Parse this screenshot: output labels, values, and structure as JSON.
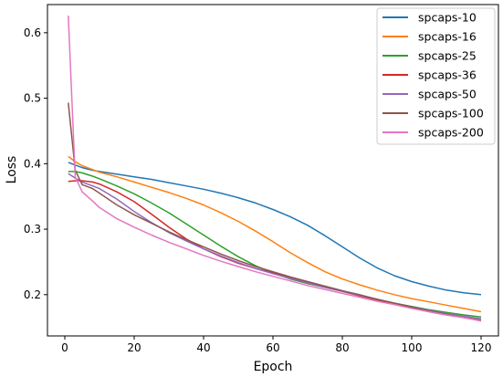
{
  "chart_data": {
    "type": "line",
    "title": "",
    "xlabel": "Epoch",
    "ylabel": "Loss",
    "xlim": [
      -5,
      125
    ],
    "ylim": [
      0.137,
      0.643
    ],
    "x_ticks": [
      0,
      20,
      40,
      60,
      80,
      100,
      120
    ],
    "y_ticks": [
      0.2,
      0.3,
      0.4,
      0.5,
      0.6
    ],
    "grid": false,
    "legend_position": "top-right",
    "x": [
      1,
      3,
      5,
      8,
      10,
      15,
      20,
      25,
      30,
      35,
      40,
      45,
      50,
      55,
      60,
      65,
      70,
      75,
      80,
      85,
      90,
      95,
      100,
      105,
      110,
      115,
      120
    ],
    "series": [
      {
        "name": "spcaps-10",
        "color": "#1f77b4",
        "values": [
          0.402,
          0.398,
          0.394,
          0.39,
          0.388,
          0.384,
          0.38,
          0.376,
          0.371,
          0.366,
          0.361,
          0.355,
          0.348,
          0.34,
          0.33,
          0.319,
          0.306,
          0.29,
          0.273,
          0.256,
          0.241,
          0.229,
          0.22,
          0.213,
          0.207,
          0.203,
          0.2
        ]
      },
      {
        "name": "spcaps-16",
        "color": "#ff7f0e",
        "values": [
          0.411,
          0.403,
          0.397,
          0.391,
          0.387,
          0.38,
          0.372,
          0.364,
          0.356,
          0.347,
          0.337,
          0.325,
          0.312,
          0.297,
          0.281,
          0.264,
          0.249,
          0.235,
          0.224,
          0.215,
          0.207,
          0.2,
          0.194,
          0.189,
          0.184,
          0.179,
          0.174
        ]
      },
      {
        "name": "spcaps-25",
        "color": "#2ca02c",
        "values": [
          0.388,
          0.388,
          0.386,
          0.381,
          0.377,
          0.366,
          0.354,
          0.34,
          0.325,
          0.308,
          0.291,
          0.274,
          0.258,
          0.244,
          0.233,
          0.224,
          0.217,
          0.211,
          0.205,
          0.199,
          0.193,
          0.187,
          0.182,
          0.177,
          0.173,
          0.169,
          0.166
        ]
      },
      {
        "name": "spcaps-36",
        "color": "#d62728",
        "values": [
          0.373,
          0.374,
          0.374,
          0.372,
          0.369,
          0.357,
          0.342,
          0.323,
          0.303,
          0.285,
          0.27,
          0.258,
          0.248,
          0.24,
          0.233,
          0.226,
          0.219,
          0.212,
          0.205,
          0.198,
          0.192,
          0.186,
          0.18,
          0.174,
          0.169,
          0.165,
          0.16
        ]
      },
      {
        "name": "spcaps-50",
        "color": "#9467bd",
        "values": [
          0.385,
          0.378,
          0.372,
          0.366,
          0.362,
          0.346,
          0.327,
          0.31,
          0.295,
          0.282,
          0.27,
          0.259,
          0.249,
          0.24,
          0.232,
          0.225,
          0.218,
          0.211,
          0.205,
          0.199,
          0.193,
          0.187,
          0.181,
          0.176,
          0.171,
          0.167,
          0.163
        ]
      },
      {
        "name": "spcaps-100",
        "color": "#8c564b",
        "values": [
          0.493,
          0.39,
          0.368,
          0.362,
          0.355,
          0.337,
          0.322,
          0.309,
          0.296,
          0.284,
          0.273,
          0.262,
          0.252,
          0.243,
          0.235,
          0.227,
          0.22,
          0.213,
          0.206,
          0.2,
          0.193,
          0.187,
          0.181,
          0.175,
          0.17,
          0.165,
          0.161
        ]
      },
      {
        "name": "spcaps-200",
        "color": "#e377c2",
        "values": [
          0.626,
          0.38,
          0.357,
          0.343,
          0.333,
          0.316,
          0.303,
          0.291,
          0.28,
          0.27,
          0.26,
          0.251,
          0.243,
          0.235,
          0.228,
          0.221,
          0.214,
          0.208,
          0.202,
          0.196,
          0.19,
          0.185,
          0.179,
          0.174,
          0.169,
          0.165,
          0.16
        ]
      }
    ]
  }
}
